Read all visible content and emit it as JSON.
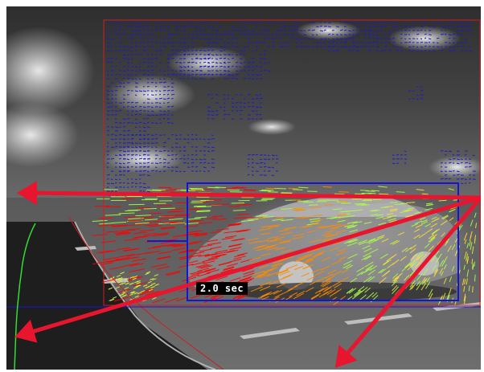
{
  "overlay": {
    "time_to_contact_label": "2.0 sec"
  },
  "colors": {
    "roi_border": "#cc1f1f",
    "vehicle_box": "#1515d8",
    "horizon_line": "#1515d8",
    "direction_arrows": "#e8152f",
    "lane_curve": "#33dd33",
    "background_flow": "#1a1ad0",
    "vehicle_flow_near": "#ff0000",
    "vehicle_flow_mid": "#ff8a00",
    "vehicle_flow_far": "#aaff44"
  }
}
